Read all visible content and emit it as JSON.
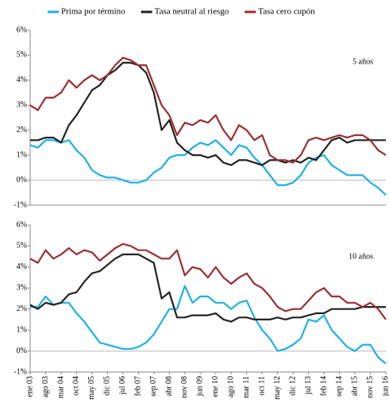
{
  "chart_data": {
    "type": "line",
    "categories": [
      "ene 03",
      null,
      "ago 03",
      null,
      "mar 04",
      null,
      "oct 04",
      null,
      "may 05",
      null,
      "dic 05",
      null,
      "jul 06",
      null,
      "feb 07",
      null,
      "sep 07",
      null,
      "abr 08",
      null,
      "nov 08",
      null,
      "jun 09",
      null,
      "ene 10",
      null,
      "ago 10",
      null,
      "mar 11",
      null,
      "oct 11",
      null,
      "may 12",
      null,
      "dic 12",
      null,
      "jul 13",
      null,
      "feb 14",
      null,
      "sep 14",
      null,
      "abr 15",
      null,
      "nov 15",
      null,
      "jun 16"
    ],
    "series": [
      {
        "name": "Prima por término",
        "color": "#1fb0e6"
      },
      {
        "name": "Tasa neutral al riesgo",
        "color": "#222222"
      },
      {
        "name": "Tasa cero cupón",
        "color": "#9b2d30"
      }
    ],
    "panels": [
      {
        "annotation": "5 años",
        "ylim": [
          -1,
          6
        ],
        "yticks": [
          {
            "value": -1,
            "label": "-1%"
          },
          {
            "value": 0,
            "label": "0%"
          },
          {
            "value": 1,
            "label": "1%"
          },
          {
            "value": 2,
            "label": "2%"
          },
          {
            "value": 3,
            "label": "3%"
          },
          {
            "value": 4,
            "label": "4%"
          },
          {
            "value": 5,
            "label": "5%"
          },
          {
            "value": 6,
            "label": "6%"
          }
        ],
        "values": [
          [
            1.4,
            1.3,
            1.6,
            1.6,
            1.5,
            1.6,
            1.2,
            0.9,
            0.4,
            0.2,
            0.1,
            0.1,
            0.0,
            -0.1,
            -0.1,
            0.0,
            0.3,
            0.5,
            0.9,
            1.0,
            1.0,
            1.3,
            1.5,
            1.4,
            1.6,
            1.3,
            1.0,
            1.4,
            1.3,
            0.9,
            0.6,
            0.2,
            -0.2,
            -0.2,
            -0.1,
            0.2,
            0.7,
            0.9,
            1.0,
            0.6,
            0.4,
            0.2,
            0.2,
            0.2,
            -0.1,
            -0.3,
            -0.6
          ],
          [
            1.6,
            1.6,
            1.7,
            1.7,
            1.5,
            2.2,
            2.6,
            3.1,
            3.6,
            3.8,
            4.2,
            4.4,
            4.7,
            4.7,
            4.6,
            4.3,
            3.5,
            2.0,
            2.4,
            1.5,
            1.2,
            1.0,
            1.0,
            0.9,
            1.0,
            0.7,
            0.6,
            0.8,
            0.8,
            0.7,
            0.6,
            0.8,
            0.8,
            0.7,
            0.8,
            0.7,
            0.9,
            0.8,
            1.2,
            1.6,
            1.7,
            1.5,
            1.6,
            1.6,
            1.6,
            1.6,
            1.6
          ],
          [
            3.0,
            2.8,
            3.3,
            3.3,
            3.5,
            4.0,
            3.7,
            4.0,
            4.2,
            4.0,
            4.2,
            4.6,
            4.9,
            4.8,
            4.6,
            4.6,
            3.8,
            3.0,
            2.6,
            1.8,
            2.3,
            2.2,
            2.4,
            2.3,
            2.6,
            2.0,
            1.6,
            2.2,
            2.0,
            1.6,
            1.8,
            1.0,
            0.8,
            0.8,
            0.7,
            1.0,
            1.6,
            1.7,
            1.6,
            1.7,
            1.8,
            1.7,
            1.8,
            1.8,
            1.6,
            1.2,
            1.0
          ]
        ]
      },
      {
        "annotation": "10 años",
        "ylim": [
          -1,
          6
        ],
        "yticks": [
          {
            "value": -1,
            "label": "-1%"
          },
          {
            "value": 0,
            "label": "0%"
          },
          {
            "value": 1,
            "label": "1%"
          },
          {
            "value": 2,
            "label": "2%"
          },
          {
            "value": 3,
            "label": "3%"
          },
          {
            "value": 4,
            "label": "4%"
          },
          {
            "value": 5,
            "label": "5%"
          },
          {
            "value": 6,
            "label": "6%"
          }
        ],
        "values": [
          [
            2.1,
            2.1,
            2.6,
            2.2,
            2.3,
            2.3,
            1.8,
            1.4,
            0.9,
            0.4,
            0.3,
            0.2,
            0.1,
            0.1,
            0.2,
            0.4,
            0.8,
            1.4,
            2.0,
            2.0,
            3.1,
            2.3,
            2.6,
            2.6,
            2.3,
            2.3,
            2.0,
            2.3,
            2.4,
            1.6,
            1.0,
            0.6,
            0.0,
            0.1,
            0.3,
            0.6,
            1.5,
            1.4,
            1.7,
            1.0,
            0.6,
            0.2,
            0.0,
            0.3,
            0.3,
            -0.3,
            -0.6
          ],
          [
            2.2,
            2.0,
            2.3,
            2.2,
            2.3,
            2.7,
            2.8,
            3.3,
            3.7,
            3.8,
            4.1,
            4.4,
            4.6,
            4.6,
            4.6,
            4.4,
            4.2,
            2.5,
            2.8,
            1.6,
            1.6,
            1.7,
            1.7,
            1.7,
            1.8,
            1.5,
            1.4,
            1.6,
            1.6,
            1.5,
            1.5,
            1.5,
            1.6,
            1.5,
            1.6,
            1.6,
            1.7,
            1.8,
            1.8,
            2.0,
            2.0,
            2.0,
            2.0,
            2.1,
            2.1,
            2.1,
            2.1
          ],
          [
            4.4,
            4.2,
            4.8,
            4.4,
            4.6,
            4.9,
            4.6,
            4.8,
            4.7,
            4.3,
            4.6,
            4.9,
            5.1,
            5.0,
            4.8,
            4.8,
            4.6,
            4.4,
            4.4,
            4.8,
            3.6,
            4.0,
            3.9,
            3.5,
            4.0,
            3.5,
            3.2,
            3.5,
            3.7,
            3.2,
            3.0,
            2.6,
            2.1,
            1.9,
            2.0,
            2.0,
            2.4,
            2.8,
            3.0,
            2.6,
            2.6,
            2.3,
            2.3,
            2.1,
            2.3,
            2.0,
            1.5
          ]
        ]
      }
    ]
  }
}
